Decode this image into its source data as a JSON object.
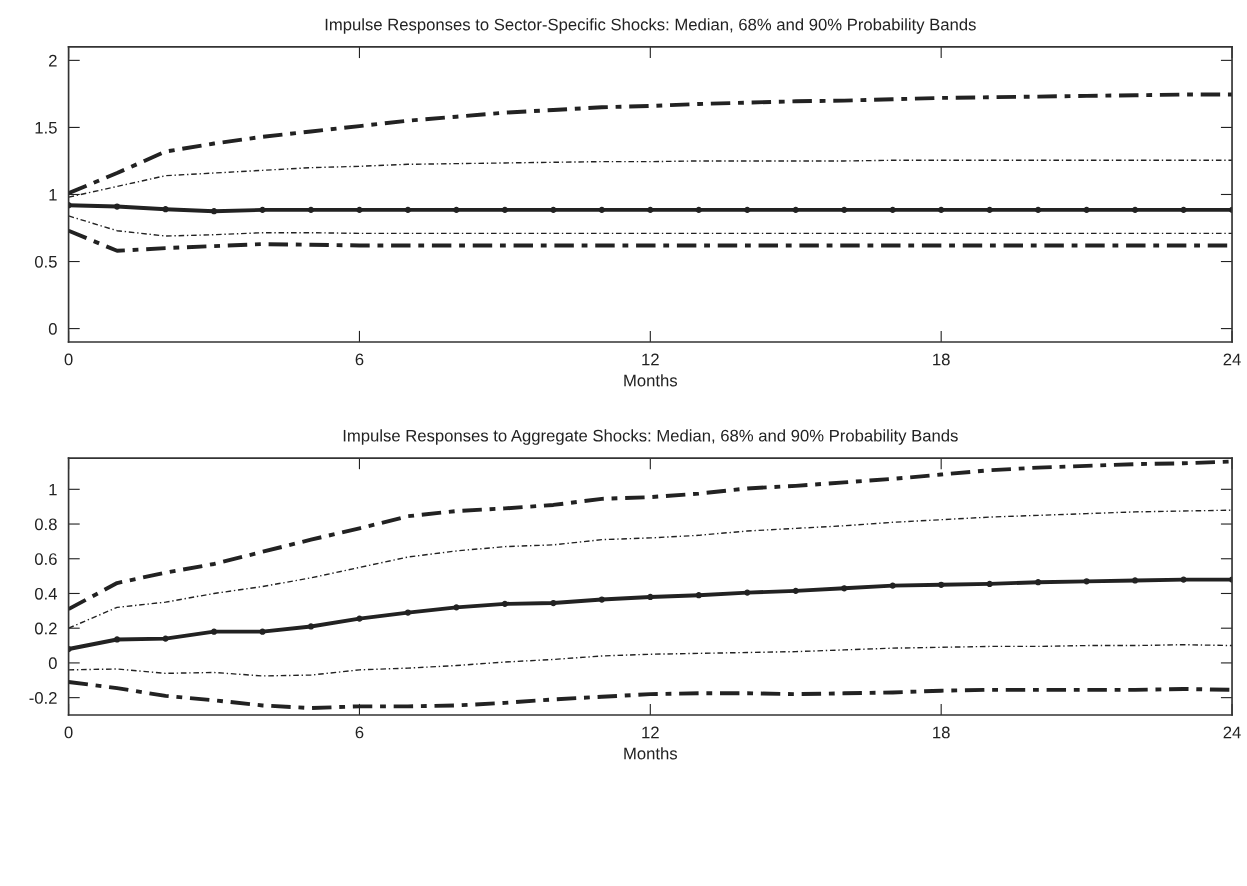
{
  "chart_data": [
    {
      "type": "line",
      "title": "Impulse Responses to Sector-Specific Shocks: Median, 68% and 90% Probability Bands",
      "xlabel": "Months",
      "x": [
        0,
        1,
        2,
        3,
        4,
        5,
        6,
        7,
        8,
        9,
        10,
        11,
        12,
        13,
        14,
        15,
        16,
        17,
        18,
        19,
        20,
        21,
        22,
        23,
        24
      ],
      "xlim": [
        0,
        24
      ],
      "xticks": [
        0,
        6,
        12,
        18,
        24
      ],
      "ylim": [
        -0.1,
        2.1
      ],
      "yticks": [
        0,
        0.5,
        1,
        1.5,
        2
      ],
      "grid": false,
      "series": [
        {
          "color": "#222222",
          "line_style": "dashed",
          "marker": "none",
          "values": [
            1.01,
            1.16,
            1.32,
            1.38,
            1.43,
            1.47,
            1.51,
            1.55,
            1.58,
            1.61,
            1.63,
            1.65,
            1.66,
            1.675,
            1.685,
            1.695,
            1.7,
            1.71,
            1.72,
            1.725,
            1.73,
            1.735,
            1.74,
            1.745,
            1.745
          ]
        },
        {
          "color": "#222222",
          "line_style": "dotted",
          "marker": "none",
          "values": [
            0.98,
            1.06,
            1.14,
            1.16,
            1.18,
            1.2,
            1.21,
            1.225,
            1.23,
            1.235,
            1.24,
            1.245,
            1.245,
            1.25,
            1.25,
            1.25,
            1.25,
            1.255,
            1.255,
            1.255,
            1.255,
            1.255,
            1.255,
            1.255,
            1.255
          ]
        },
        {
          "color": "#222222",
          "line_style": "solid",
          "marker": "circle",
          "values": [
            0.92,
            0.91,
            0.89,
            0.875,
            0.885,
            0.885,
            0.885,
            0.885,
            0.885,
            0.885,
            0.885,
            0.885,
            0.885,
            0.885,
            0.885,
            0.885,
            0.885,
            0.885,
            0.885,
            0.885,
            0.885,
            0.885,
            0.885,
            0.885,
            0.885
          ]
        },
        {
          "color": "#222222",
          "line_style": "dotted",
          "marker": "none",
          "values": [
            0.84,
            0.73,
            0.69,
            0.7,
            0.715,
            0.715,
            0.71,
            0.71,
            0.71,
            0.71,
            0.71,
            0.71,
            0.71,
            0.71,
            0.71,
            0.71,
            0.71,
            0.71,
            0.71,
            0.71,
            0.71,
            0.71,
            0.71,
            0.71,
            0.71
          ]
        },
        {
          "color": "#222222",
          "line_style": "dashed",
          "marker": "none",
          "values": [
            0.73,
            0.58,
            0.6,
            0.615,
            0.63,
            0.625,
            0.62,
            0.62,
            0.62,
            0.62,
            0.62,
            0.62,
            0.62,
            0.62,
            0.62,
            0.62,
            0.62,
            0.62,
            0.62,
            0.62,
            0.62,
            0.62,
            0.62,
            0.62,
            0.62
          ]
        }
      ]
    },
    {
      "type": "line",
      "title": "Impulse Responses to Aggregate Shocks: Median, 68% and 90% Probability Bands",
      "xlabel": "Months",
      "x": [
        0,
        1,
        2,
        3,
        4,
        5,
        6,
        7,
        8,
        9,
        10,
        11,
        12,
        13,
        14,
        15,
        16,
        17,
        18,
        19,
        20,
        21,
        22,
        23,
        24
      ],
      "xlim": [
        0,
        24
      ],
      "xticks": [
        0,
        6,
        12,
        18,
        24
      ],
      "ylim": [
        -0.3,
        1.18
      ],
      "yticks": [
        -0.2,
        0,
        0.2,
        0.4,
        0.6,
        0.8,
        1
      ],
      "grid": false,
      "series": [
        {
          "color": "#222222",
          "line_style": "dashed",
          "marker": "none",
          "values": [
            0.31,
            0.46,
            0.52,
            0.57,
            0.64,
            0.71,
            0.775,
            0.845,
            0.875,
            0.89,
            0.91,
            0.945,
            0.955,
            0.975,
            1.005,
            1.02,
            1.04,
            1.06,
            1.085,
            1.11,
            1.125,
            1.135,
            1.145,
            1.15,
            1.16
          ]
        },
        {
          "color": "#222222",
          "line_style": "dotted",
          "marker": "none",
          "values": [
            0.2,
            0.32,
            0.35,
            0.4,
            0.44,
            0.49,
            0.55,
            0.61,
            0.645,
            0.67,
            0.68,
            0.71,
            0.72,
            0.735,
            0.76,
            0.775,
            0.79,
            0.81,
            0.825,
            0.84,
            0.85,
            0.86,
            0.87,
            0.875,
            0.88
          ]
        },
        {
          "color": "#222222",
          "line_style": "solid",
          "marker": "circle",
          "values": [
            0.08,
            0.135,
            0.14,
            0.18,
            0.18,
            0.21,
            0.255,
            0.29,
            0.32,
            0.34,
            0.345,
            0.365,
            0.38,
            0.39,
            0.405,
            0.415,
            0.43,
            0.445,
            0.45,
            0.455,
            0.465,
            0.47,
            0.475,
            0.48,
            0.48
          ]
        },
        {
          "color": "#222222",
          "line_style": "dotted",
          "marker": "none",
          "values": [
            -0.04,
            -0.035,
            -0.06,
            -0.055,
            -0.075,
            -0.07,
            -0.04,
            -0.03,
            -0.015,
            0.005,
            0.02,
            0.04,
            0.05,
            0.055,
            0.06,
            0.065,
            0.075,
            0.085,
            0.09,
            0.095,
            0.095,
            0.1,
            0.1,
            0.105,
            0.1
          ]
        },
        {
          "color": "#222222",
          "line_style": "dashed",
          "marker": "none",
          "values": [
            -0.11,
            -0.145,
            -0.19,
            -0.215,
            -0.245,
            -0.26,
            -0.25,
            -0.25,
            -0.245,
            -0.23,
            -0.21,
            -0.195,
            -0.18,
            -0.175,
            -0.175,
            -0.18,
            -0.175,
            -0.17,
            -0.16,
            -0.155,
            -0.155,
            -0.155,
            -0.155,
            -0.15,
            -0.155
          ]
        }
      ]
    }
  ]
}
